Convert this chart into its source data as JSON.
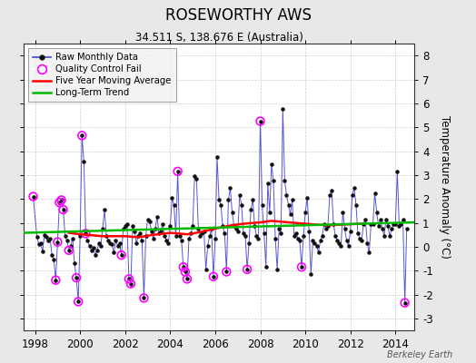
{
  "title": "ROSEWORTHY AWS",
  "subtitle": "34.511 S, 138.676 E (Australia)",
  "ylabel": "Temperature Anomaly (°C)",
  "watermark": "Berkeley Earth",
  "xlim": [
    1997.5,
    2014.83
  ],
  "ylim": [
    -3.5,
    8.5
  ],
  "yticks": [
    -3,
    -2,
    -1,
    0,
    1,
    2,
    3,
    4,
    5,
    6,
    7,
    8
  ],
  "xticks": [
    1998,
    2000,
    2002,
    2004,
    2006,
    2008,
    2010,
    2012,
    2014
  ],
  "bg_color": "#e8e8e8",
  "plot_bg_color": "#ffffff",
  "raw_color": "#4444cc",
  "raw_marker_color": "#111111",
  "qc_color": "#ff00ff",
  "ma_color": "#ff0000",
  "trend_color": "#00bb00",
  "raw_data": [
    [
      1997.917,
      2.1
    ],
    [
      1998.083,
      0.4
    ],
    [
      1998.167,
      0.1
    ],
    [
      1998.25,
      0.15
    ],
    [
      1998.333,
      -0.2
    ],
    [
      1998.417,
      0.5
    ],
    [
      1998.5,
      0.4
    ],
    [
      1998.583,
      0.25
    ],
    [
      1998.667,
      0.35
    ],
    [
      1998.75,
      -0.35
    ],
    [
      1998.833,
      -0.55
    ],
    [
      1998.917,
      -1.4
    ],
    [
      1999.0,
      0.2
    ],
    [
      1999.083,
      1.85
    ],
    [
      1999.167,
      1.95
    ],
    [
      1999.25,
      1.55
    ],
    [
      1999.333,
      0.45
    ],
    [
      1999.417,
      0.25
    ],
    [
      1999.5,
      -0.15
    ],
    [
      1999.583,
      0.05
    ],
    [
      1999.667,
      0.35
    ],
    [
      1999.75,
      -0.7
    ],
    [
      1999.833,
      -1.3
    ],
    [
      1999.917,
      -2.3
    ],
    [
      2000.0,
      0.45
    ],
    [
      2000.083,
      4.65
    ],
    [
      2000.167,
      3.55
    ],
    [
      2000.25,
      0.55
    ],
    [
      2000.333,
      0.25
    ],
    [
      2000.417,
      0.05
    ],
    [
      2000.5,
      -0.15
    ],
    [
      2000.583,
      -0.05
    ],
    [
      2000.667,
      -0.35
    ],
    [
      2000.75,
      -0.15
    ],
    [
      2000.833,
      0.15
    ],
    [
      2000.917,
      0.05
    ],
    [
      2001.0,
      0.75
    ],
    [
      2001.083,
      1.55
    ],
    [
      2001.167,
      0.45
    ],
    [
      2001.25,
      0.25
    ],
    [
      2001.333,
      0.15
    ],
    [
      2001.417,
      0.1
    ],
    [
      2001.5,
      -0.25
    ],
    [
      2001.583,
      0.25
    ],
    [
      2001.667,
      0.05
    ],
    [
      2001.75,
      0.15
    ],
    [
      2001.833,
      -0.35
    ],
    [
      2001.917,
      0.75
    ],
    [
      2002.0,
      0.85
    ],
    [
      2002.083,
      0.95
    ],
    [
      2002.167,
      -1.35
    ],
    [
      2002.25,
      -1.55
    ],
    [
      2002.333,
      0.85
    ],
    [
      2002.417,
      0.65
    ],
    [
      2002.5,
      0.15
    ],
    [
      2002.583,
      0.45
    ],
    [
      2002.667,
      0.55
    ],
    [
      2002.75,
      0.25
    ],
    [
      2002.833,
      -2.15
    ],
    [
      2002.917,
      0.45
    ],
    [
      2003.0,
      1.15
    ],
    [
      2003.083,
      1.05
    ],
    [
      2003.167,
      0.65
    ],
    [
      2003.25,
      0.35
    ],
    [
      2003.333,
      0.75
    ],
    [
      2003.417,
      1.25
    ],
    [
      2003.5,
      0.55
    ],
    [
      2003.583,
      0.65
    ],
    [
      2003.667,
      0.95
    ],
    [
      2003.75,
      0.45
    ],
    [
      2003.833,
      0.25
    ],
    [
      2003.917,
      0.15
    ],
    [
      2004.0,
      0.85
    ],
    [
      2004.083,
      2.05
    ],
    [
      2004.167,
      1.75
    ],
    [
      2004.25,
      0.45
    ],
    [
      2004.333,
      3.15
    ],
    [
      2004.417,
      0.45
    ],
    [
      2004.5,
      0.25
    ],
    [
      2004.583,
      -0.85
    ],
    [
      2004.667,
      -1.05
    ],
    [
      2004.75,
      -1.35
    ],
    [
      2004.833,
      0.35
    ],
    [
      2004.917,
      0.55
    ],
    [
      2005.0,
      0.85
    ],
    [
      2005.083,
      2.95
    ],
    [
      2005.167,
      2.85
    ],
    [
      2005.25,
      0.75
    ],
    [
      2005.333,
      0.45
    ],
    [
      2005.417,
      0.55
    ],
    [
      2005.5,
      0.65
    ],
    [
      2005.583,
      -0.95
    ],
    [
      2005.667,
      0.05
    ],
    [
      2005.75,
      0.45
    ],
    [
      2005.833,
      0.75
    ],
    [
      2005.917,
      -1.25
    ],
    [
      2006.0,
      0.35
    ],
    [
      2006.083,
      3.75
    ],
    [
      2006.167,
      1.95
    ],
    [
      2006.25,
      1.75
    ],
    [
      2006.333,
      0.85
    ],
    [
      2006.417,
      0.55
    ],
    [
      2006.5,
      -1.05
    ],
    [
      2006.583,
      1.95
    ],
    [
      2006.667,
      2.45
    ],
    [
      2006.75,
      1.45
    ],
    [
      2006.833,
      0.85
    ],
    [
      2006.917,
      0.75
    ],
    [
      2007.0,
      0.65
    ],
    [
      2007.083,
      2.15
    ],
    [
      2007.167,
      1.75
    ],
    [
      2007.25,
      0.55
    ],
    [
      2007.333,
      0.45
    ],
    [
      2007.417,
      -0.95
    ],
    [
      2007.5,
      0.15
    ],
    [
      2007.583,
      1.55
    ],
    [
      2007.667,
      1.95
    ],
    [
      2007.75,
      0.85
    ],
    [
      2007.833,
      0.45
    ],
    [
      2007.917,
      0.35
    ],
    [
      2008.0,
      5.25
    ],
    [
      2008.083,
      1.75
    ],
    [
      2008.167,
      0.55
    ],
    [
      2008.25,
      -0.85
    ],
    [
      2008.333,
      2.65
    ],
    [
      2008.417,
      1.45
    ],
    [
      2008.5,
      3.45
    ],
    [
      2008.583,
      2.75
    ],
    [
      2008.667,
      0.35
    ],
    [
      2008.75,
      -0.95
    ],
    [
      2008.833,
      0.75
    ],
    [
      2008.917,
      0.55
    ],
    [
      2009.0,
      5.75
    ],
    [
      2009.083,
      2.75
    ],
    [
      2009.167,
      2.15
    ],
    [
      2009.25,
      1.75
    ],
    [
      2009.333,
      1.35
    ],
    [
      2009.417,
      1.95
    ],
    [
      2009.5,
      0.45
    ],
    [
      2009.583,
      0.55
    ],
    [
      2009.667,
      0.35
    ],
    [
      2009.75,
      0.25
    ],
    [
      2009.833,
      -0.85
    ],
    [
      2009.917,
      0.45
    ],
    [
      2010.0,
      1.45
    ],
    [
      2010.083,
      2.05
    ],
    [
      2010.167,
      0.65
    ],
    [
      2010.25,
      -1.15
    ],
    [
      2010.333,
      0.25
    ],
    [
      2010.417,
      0.15
    ],
    [
      2010.5,
      0.05
    ],
    [
      2010.583,
      -0.25
    ],
    [
      2010.667,
      0.25
    ],
    [
      2010.75,
      0.45
    ],
    [
      2010.833,
      0.95
    ],
    [
      2010.917,
      0.75
    ],
    [
      2011.0,
      0.85
    ],
    [
      2011.083,
      2.15
    ],
    [
      2011.167,
      2.35
    ],
    [
      2011.25,
      0.95
    ],
    [
      2011.333,
      0.45
    ],
    [
      2011.417,
      0.25
    ],
    [
      2011.5,
      0.15
    ],
    [
      2011.583,
      0.05
    ],
    [
      2011.667,
      1.45
    ],
    [
      2011.75,
      0.75
    ],
    [
      2011.833,
      0.25
    ],
    [
      2011.917,
      0.05
    ],
    [
      2012.0,
      0.65
    ],
    [
      2012.083,
      2.15
    ],
    [
      2012.167,
      2.45
    ],
    [
      2012.25,
      1.75
    ],
    [
      2012.333,
      0.55
    ],
    [
      2012.417,
      0.35
    ],
    [
      2012.5,
      0.25
    ],
    [
      2012.583,
      0.95
    ],
    [
      2012.667,
      1.15
    ],
    [
      2012.75,
      0.15
    ],
    [
      2012.833,
      -0.25
    ],
    [
      2012.917,
      0.95
    ],
    [
      2013.0,
      0.95
    ],
    [
      2013.083,
      2.25
    ],
    [
      2013.167,
      1.45
    ],
    [
      2013.25,
      0.85
    ],
    [
      2013.333,
      1.15
    ],
    [
      2013.417,
      0.75
    ],
    [
      2013.5,
      0.45
    ],
    [
      2013.583,
      1.15
    ],
    [
      2013.667,
      0.85
    ],
    [
      2013.75,
      0.45
    ],
    [
      2013.833,
      0.75
    ],
    [
      2013.917,
      0.95
    ],
    [
      2014.0,
      0.95
    ],
    [
      2014.083,
      3.15
    ],
    [
      2014.167,
      0.85
    ],
    [
      2014.25,
      0.95
    ],
    [
      2014.333,
      1.15
    ],
    [
      2014.417,
      -2.35
    ],
    [
      2014.5,
      0.75
    ]
  ],
  "qc_fail_points": [
    [
      1997.917,
      2.1
    ],
    [
      1998.917,
      -1.4
    ],
    [
      1999.0,
      0.2
    ],
    [
      1999.083,
      1.85
    ],
    [
      1999.167,
      1.95
    ],
    [
      1999.25,
      1.55
    ],
    [
      1999.5,
      -0.15
    ],
    [
      1999.833,
      -1.3
    ],
    [
      1999.917,
      -2.3
    ],
    [
      2000.083,
      4.65
    ],
    [
      2000.25,
      0.55
    ],
    [
      2001.833,
      -0.35
    ],
    [
      2002.167,
      -1.35
    ],
    [
      2002.25,
      -1.55
    ],
    [
      2002.833,
      -2.15
    ],
    [
      2004.333,
      3.15
    ],
    [
      2004.583,
      -0.85
    ],
    [
      2004.667,
      -1.05
    ],
    [
      2004.75,
      -1.35
    ],
    [
      2005.917,
      -1.25
    ],
    [
      2006.5,
      -1.05
    ],
    [
      2007.417,
      -0.95
    ],
    [
      2008.0,
      5.25
    ],
    [
      2009.833,
      -0.85
    ],
    [
      2014.417,
      -2.35
    ]
  ],
  "moving_avg": [
    [
      1999.5,
      0.58
    ],
    [
      1999.75,
      0.55
    ],
    [
      2000.0,
      0.52
    ],
    [
      2000.25,
      0.5
    ],
    [
      2000.5,
      0.48
    ],
    [
      2000.75,
      0.46
    ],
    [
      2001.0,
      0.44
    ],
    [
      2001.25,
      0.44
    ],
    [
      2001.5,
      0.44
    ],
    [
      2001.75,
      0.44
    ],
    [
      2002.0,
      0.44
    ],
    [
      2002.25,
      0.42
    ],
    [
      2002.5,
      0.4
    ],
    [
      2002.75,
      0.42
    ],
    [
      2003.0,
      0.46
    ],
    [
      2003.25,
      0.5
    ],
    [
      2003.5,
      0.52
    ],
    [
      2003.75,
      0.55
    ],
    [
      2004.0,
      0.58
    ],
    [
      2004.25,
      0.56
    ],
    [
      2004.5,
      0.54
    ],
    [
      2004.75,
      0.52
    ],
    [
      2005.0,
      0.55
    ],
    [
      2005.25,
      0.6
    ],
    [
      2005.5,
      0.65
    ],
    [
      2005.75,
      0.7
    ],
    [
      2006.0,
      0.76
    ],
    [
      2006.25,
      0.8
    ],
    [
      2006.5,
      0.85
    ],
    [
      2006.75,
      0.9
    ],
    [
      2007.0,
      0.93
    ],
    [
      2007.25,
      0.96
    ],
    [
      2007.5,
      0.98
    ],
    [
      2007.75,
      1.0
    ],
    [
      2008.0,
      1.02
    ],
    [
      2008.25,
      1.05
    ],
    [
      2008.5,
      1.08
    ],
    [
      2008.75,
      1.06
    ],
    [
      2009.0,
      1.04
    ],
    [
      2009.25,
      1.02
    ],
    [
      2009.5,
      1.0
    ],
    [
      2009.75,
      0.98
    ],
    [
      2010.0,
      0.96
    ],
    [
      2010.25,
      0.94
    ],
    [
      2010.5,
      0.92
    ],
    [
      2010.75,
      0.91
    ],
    [
      2011.0,
      0.9
    ],
    [
      2011.25,
      0.91
    ],
    [
      2011.5,
      0.92
    ],
    [
      2011.75,
      0.93
    ],
    [
      2012.0,
      0.94
    ],
    [
      2012.25,
      0.95
    ],
    [
      2012.5,
      0.96
    ]
  ],
  "trend_x": [
    1997.5,
    2014.83
  ],
  "trend_y": [
    0.58,
    1.02
  ]
}
